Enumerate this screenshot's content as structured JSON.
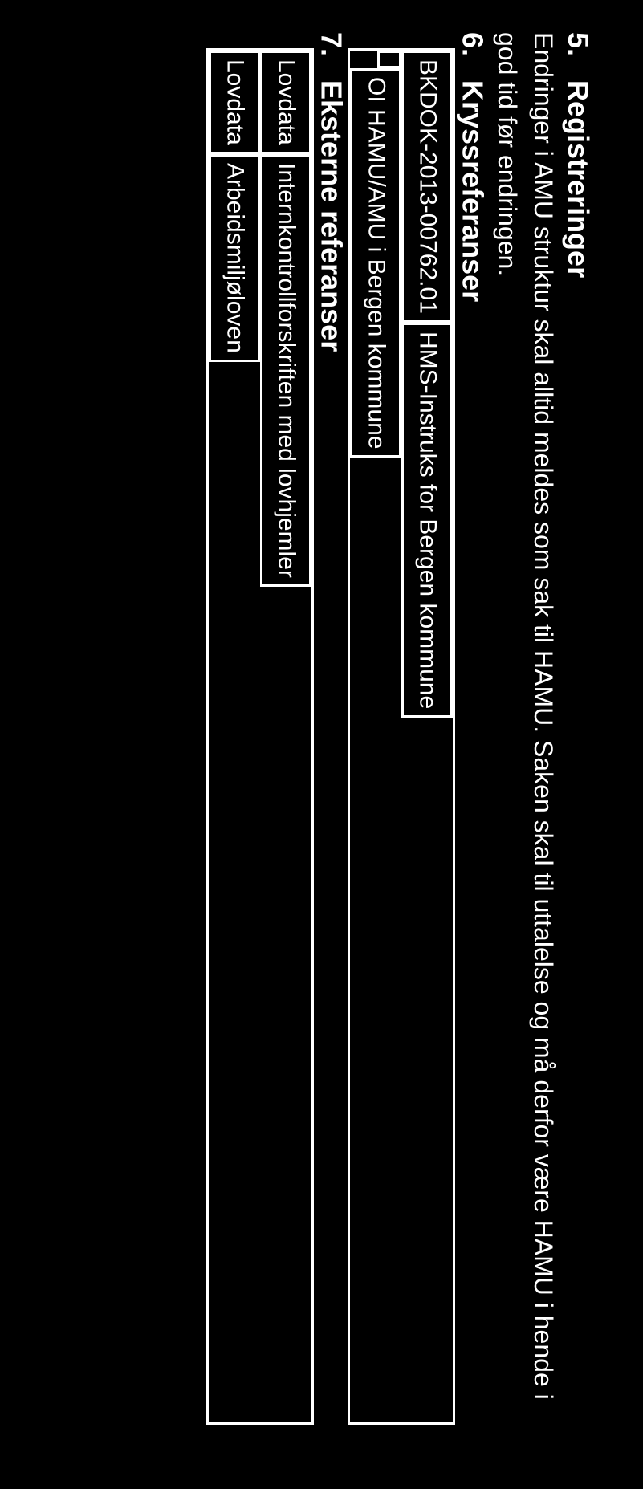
{
  "background_color": "#000000",
  "text_color": "#ffffff",
  "border_color": "#ffffff",
  "font_family": "Arial, sans-serif",
  "section_title_fontsize": 36,
  "body_fontsize": 32,
  "table_fontsize": 30,
  "sections": {
    "s5": {
      "number": "5.",
      "title": "Registreringer",
      "body": "Endringer i AMU struktur skal alltid meldes som sak til HAMU. Saken skal til uttalelse og må derfor være HAMU i hende i god tid før endringen."
    },
    "s6": {
      "number": "6.",
      "title": "Kryssreferanser"
    },
    "s7": {
      "number": "7.",
      "title": "Eksterne referanser"
    }
  },
  "table1": {
    "rows": [
      {
        "left": "BKDOK-2013-00762.01",
        "right": "HMS-Instruks for Bergen kommune"
      },
      {
        "left": "",
        "right": "OI HAMU/AMU i Bergen kommune"
      }
    ]
  },
  "table2": {
    "rows": [
      {
        "left": "Lovdata",
        "right": "Internkontrollforskriften med lovhjemler"
      },
      {
        "left": "Lovdata",
        "right": "Arbeidsmiljøloven"
      }
    ]
  }
}
